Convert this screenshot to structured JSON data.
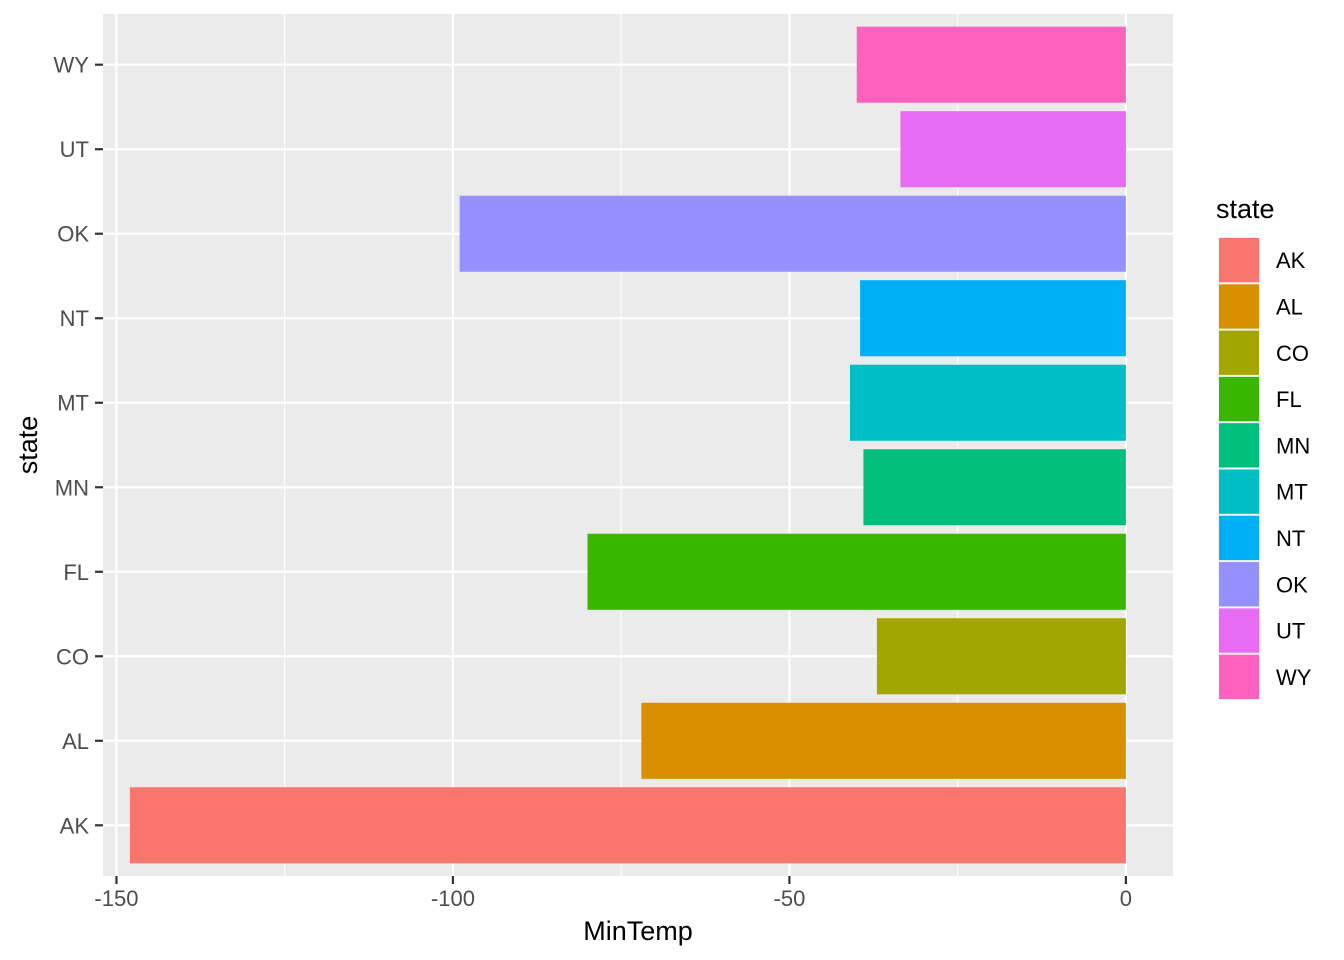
{
  "chart_data": {
    "type": "bar",
    "orientation": "horizontal",
    "xlabel": "MinTemp",
    "ylabel": "state",
    "xlim": [
      -152,
      7
    ],
    "x_ticks": [
      -150,
      -100,
      -50,
      0
    ],
    "x_tick_labels": [
      "-150",
      "-100",
      "-50",
      "0"
    ],
    "grid": true,
    "legend": {
      "title": "state",
      "placement": "right",
      "entries": [
        "AK",
        "AL",
        "CO",
        "FL",
        "MN",
        "MT",
        "NT",
        "OK",
        "UT",
        "WY"
      ]
    },
    "categories": [
      "AK",
      "AL",
      "CO",
      "FL",
      "MN",
      "MT",
      "NT",
      "OK",
      "UT",
      "WY"
    ],
    "values": [
      -148,
      -72,
      -37,
      -80,
      -39,
      -41,
      -39.5,
      -99,
      -33.5,
      -40
    ],
    "colors": [
      "#F8766D",
      "#D89000",
      "#A3A500",
      "#39B600",
      "#00BF7D",
      "#00BFC4",
      "#00B0F6",
      "#9590FF",
      "#E76BF3",
      "#FF62BC"
    ],
    "panel_background": "#EBEBEB",
    "gridline_color": "#FFFFFF"
  }
}
